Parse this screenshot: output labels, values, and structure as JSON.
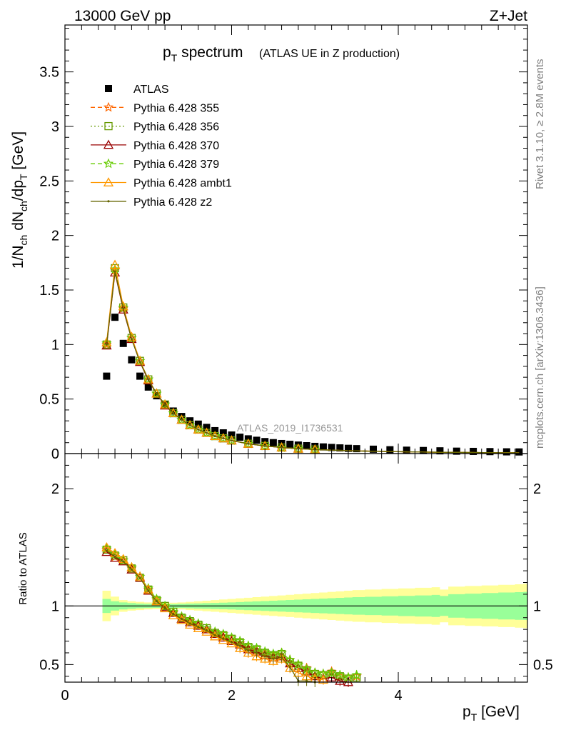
{
  "header": {
    "left": "13000 GeV pp",
    "right": "Z+Jet"
  },
  "title": {
    "main_pre": "p",
    "main_sub": "T",
    "main_post": " spectrum",
    "secondary": "(ATLAS UE in Z production)"
  },
  "ylabel_top": {
    "p1": "1/N",
    "s1": "ch",
    "p2": " dN",
    "s2": "ch",
    "p3": "/dp",
    "s3": "T",
    "p4": " [GeV]"
  },
  "ylabel_bottom": "Ratio to ATLAS",
  "xlabel": {
    "p": "p",
    "sub": "T",
    "rest": " [GeV]"
  },
  "side_text_top": "Rivet 3.1.10, ≥ 2.8M events",
  "side_text_bottom": "mcplots.cern.ch [arXiv:1306.3436]",
  "watermark": "ATLAS_2019_I1736531",
  "colors": {
    "data": "#000000",
    "band_inner": "#99ff99",
    "band_outer": "#ffff99"
  },
  "chart_data": [
    {
      "type": "scatter",
      "panel": "main",
      "xlim": [
        0,
        5.55
      ],
      "ylim": [
        0,
        3.93
      ],
      "xticks": [
        0,
        2,
        4
      ],
      "yticks": [
        0,
        0.5,
        1,
        1.5,
        2,
        2.5,
        3,
        3.5
      ],
      "ytick_labels": [
        "0",
        "0.5",
        "1",
        "1.5",
        "2",
        "2.5",
        "3",
        "3.5"
      ],
      "grid": false,
      "legend_position": "top-left",
      "series": [
        {
          "name": "ATLAS",
          "color": "#000000",
          "marker": "square",
          "line": "none",
          "x": [
            0.5,
            0.6,
            0.7,
            0.8,
            0.9,
            1.0,
            1.1,
            1.2,
            1.3,
            1.4,
            1.5,
            1.6,
            1.7,
            1.8,
            1.9,
            2.0,
            2.1,
            2.2,
            2.3,
            2.4,
            2.5,
            2.6,
            2.7,
            2.8,
            2.9,
            3.0,
            3.1,
            3.2,
            3.3,
            3.4,
            3.5,
            3.7,
            3.9,
            4.1,
            4.3,
            4.5,
            4.7,
            4.9,
            5.1,
            5.3,
            5.45
          ],
          "y": [
            0.71,
            1.25,
            1.01,
            0.86,
            0.71,
            0.61,
            0.53,
            0.45,
            0.39,
            0.34,
            0.3,
            0.27,
            0.24,
            0.21,
            0.19,
            0.17,
            0.15,
            0.135,
            0.122,
            0.11,
            0.1,
            0.092,
            0.085,
            0.078,
            0.072,
            0.066,
            0.061,
            0.056,
            0.052,
            0.048,
            0.045,
            0.04,
            0.035,
            0.031,
            0.028,
            0.025,
            0.022,
            0.02,
            0.018,
            0.016,
            0.015
          ]
        },
        {
          "name": "Pythia 6.428 355",
          "color": "#ff6600",
          "marker": "star",
          "line": "dashed",
          "x": [
            0.5,
            0.6,
            0.7,
            0.8,
            0.9,
            1.0,
            1.1,
            1.2,
            1.3,
            1.4,
            1.5,
            1.6,
            1.7,
            1.8,
            1.9,
            2.0,
            2.2,
            2.4,
            2.6,
            2.8,
            3.0,
            3.5,
            4.0,
            4.5,
            5.0,
            5.45
          ],
          "y": [
            1.0,
            1.68,
            1.33,
            1.06,
            0.85,
            0.68,
            0.55,
            0.45,
            0.37,
            0.31,
            0.26,
            0.22,
            0.19,
            0.16,
            0.14,
            0.12,
            0.09,
            0.07,
            0.055,
            0.045,
            0.037,
            0.024,
            0.017,
            0.012,
            0.009,
            0.007
          ]
        },
        {
          "name": "Pythia 6.428 356",
          "color": "#669900",
          "marker": "open-square",
          "line": "dotted",
          "x": [
            0.5,
            0.6,
            0.7,
            0.8,
            0.9,
            1.0,
            1.1,
            1.2,
            1.3,
            1.4,
            1.5,
            1.6,
            1.7,
            1.8,
            1.9,
            2.0,
            2.2,
            2.4,
            2.6,
            2.8,
            3.0,
            3.5,
            4.0,
            4.5,
            5.0,
            5.45
          ],
          "y": [
            1.0,
            1.7,
            1.34,
            1.06,
            0.85,
            0.68,
            0.55,
            0.45,
            0.37,
            0.31,
            0.26,
            0.22,
            0.19,
            0.16,
            0.14,
            0.12,
            0.09,
            0.07,
            0.055,
            0.045,
            0.037,
            0.024,
            0.017,
            0.012,
            0.009,
            0.007
          ]
        },
        {
          "name": "Pythia 6.428 370",
          "color": "#990000",
          "marker": "open-triangle",
          "line": "solid",
          "x": [
            0.5,
            0.6,
            0.7,
            0.8,
            0.9,
            1.0,
            1.1,
            1.2,
            1.3,
            1.4,
            1.5,
            1.6,
            1.7,
            1.8,
            1.9,
            2.0,
            2.2,
            2.4,
            2.6,
            2.8,
            3.0,
            3.5,
            4.0,
            4.5,
            5.0,
            5.45
          ],
          "y": [
            0.99,
            1.66,
            1.32,
            1.05,
            0.84,
            0.67,
            0.55,
            0.44,
            0.37,
            0.31,
            0.26,
            0.22,
            0.19,
            0.16,
            0.14,
            0.12,
            0.09,
            0.07,
            0.055,
            0.045,
            0.037,
            0.024,
            0.017,
            0.012,
            0.009,
            0.007
          ]
        },
        {
          "name": "Pythia 6.428 379",
          "color": "#66cc00",
          "marker": "star",
          "line": "dashed",
          "x": [
            0.5,
            0.6,
            0.7,
            0.8,
            0.9,
            1.0,
            1.1,
            1.2,
            1.3,
            1.4,
            1.5,
            1.6,
            1.7,
            1.8,
            1.9,
            2.0,
            2.2,
            2.4,
            2.6,
            2.8,
            3.0,
            3.5,
            4.0,
            4.5,
            5.0,
            5.45
          ],
          "y": [
            1.01,
            1.69,
            1.34,
            1.06,
            0.85,
            0.68,
            0.55,
            0.45,
            0.37,
            0.31,
            0.26,
            0.22,
            0.19,
            0.16,
            0.14,
            0.12,
            0.09,
            0.07,
            0.055,
            0.045,
            0.037,
            0.024,
            0.017,
            0.012,
            0.009,
            0.007
          ]
        },
        {
          "name": "Pythia 6.428 ambt1",
          "color": "#ff9900",
          "marker": "open-triangle",
          "line": "solid",
          "x": [
            0.5,
            0.6,
            0.7,
            0.8,
            0.9,
            1.0,
            1.1,
            1.2,
            1.3,
            1.4,
            1.5,
            1.6,
            1.7,
            1.8,
            1.9,
            2.0,
            2.2,
            2.4,
            2.6,
            2.8,
            3.0,
            3.5,
            4.0,
            4.5,
            5.0,
            5.45
          ],
          "y": [
            1.02,
            1.73,
            1.35,
            1.07,
            0.85,
            0.68,
            0.55,
            0.45,
            0.37,
            0.31,
            0.26,
            0.22,
            0.19,
            0.16,
            0.14,
            0.12,
            0.09,
            0.07,
            0.055,
            0.045,
            0.037,
            0.024,
            0.017,
            0.012,
            0.009,
            0.007
          ]
        },
        {
          "name": "Pythia 6.428 z2",
          "color": "#666600",
          "marker": "dot",
          "line": "solid",
          "x": [
            0.5,
            0.6,
            0.7,
            0.8,
            0.9,
            1.0,
            1.1,
            1.2,
            1.3,
            1.4,
            1.5,
            1.6,
            1.7,
            1.8,
            1.9,
            2.0,
            2.2,
            2.4,
            2.6,
            2.8,
            3.0,
            3.5,
            4.0,
            4.5,
            5.0,
            5.45
          ],
          "y": [
            1.0,
            1.67,
            1.33,
            1.05,
            0.84,
            0.68,
            0.55,
            0.45,
            0.37,
            0.31,
            0.26,
            0.22,
            0.19,
            0.16,
            0.14,
            0.12,
            0.09,
            0.07,
            0.055,
            0.045,
            0.037,
            0.024,
            0.017,
            0.012,
            0.009,
            0.007
          ]
        }
      ]
    },
    {
      "type": "line",
      "panel": "ratio",
      "xlim": [
        0,
        5.55
      ],
      "ylim": [
        0.35,
        2.3
      ],
      "xticks": [
        0,
        2,
        4
      ],
      "xtick_labels": [
        "0",
        "2",
        "4"
      ],
      "yticks": [
        0.5,
        1,
        2
      ],
      "ytick_labels": [
        "0.5",
        "1",
        "2"
      ],
      "reference_line": 1,
      "bands": {
        "x": [
          0.45,
          0.55,
          0.65,
          0.75,
          0.85,
          0.95,
          1.05,
          1.15,
          1.25,
          1.35,
          1.45,
          1.55,
          1.65,
          1.75,
          1.85,
          1.95,
          2.05,
          2.15,
          2.25,
          2.35,
          2.45,
          2.55,
          2.65,
          2.75,
          2.85,
          2.95,
          3.05,
          3.15,
          3.25,
          3.35,
          3.45,
          3.6,
          3.8,
          4.0,
          4.2,
          4.4,
          4.5,
          4.6,
          4.8,
          5.0,
          5.2,
          5.4,
          5.5
        ],
        "inner": [
          0.06,
          0.04,
          0.03,
          0.025,
          0.02,
          0.018,
          0.016,
          0.015,
          0.016,
          0.018,
          0.02,
          0.022,
          0.024,
          0.026,
          0.028,
          0.03,
          0.033,
          0.036,
          0.039,
          0.042,
          0.045,
          0.048,
          0.051,
          0.054,
          0.057,
          0.06,
          0.063,
          0.066,
          0.069,
          0.072,
          0.075,
          0.078,
          0.082,
          0.086,
          0.09,
          0.094,
          0.085,
          0.1,
          0.105,
          0.11,
          0.115,
          0.118,
          0.12
        ],
        "outer": [
          0.13,
          0.08,
          0.05,
          0.04,
          0.035,
          0.03,
          0.028,
          0.027,
          0.028,
          0.03,
          0.035,
          0.04,
          0.045,
          0.05,
          0.055,
          0.06,
          0.065,
          0.07,
          0.075,
          0.08,
          0.085,
          0.09,
          0.095,
          0.1,
          0.105,
          0.11,
          0.115,
          0.12,
          0.125,
          0.13,
          0.135,
          0.14,
          0.145,
          0.15,
          0.155,
          0.16,
          0.14,
          0.165,
          0.17,
          0.175,
          0.18,
          0.185,
          0.19
        ]
      },
      "series": [
        {
          "name": "Pythia 6.428 355",
          "color": "#ff6600",
          "marker": "star",
          "line": "dashed",
          "x": [
            0.5,
            0.6,
            0.7,
            0.8,
            0.9,
            1.0,
            1.1,
            1.2,
            1.3,
            1.4,
            1.5,
            1.6,
            1.7,
            1.8,
            1.9,
            2.0,
            2.1,
            2.2,
            2.3,
            2.4,
            2.5,
            2.6,
            2.7,
            2.8,
            2.9,
            3.0,
            3.1,
            3.2,
            3.3,
            3.4,
            3.5
          ],
          "y": [
            1.48,
            1.42,
            1.39,
            1.32,
            1.25,
            1.14,
            1.05,
            0.99,
            0.94,
            0.9,
            0.87,
            0.84,
            0.8,
            0.77,
            0.74,
            0.71,
            0.68,
            0.64,
            0.62,
            0.6,
            0.58,
            0.6,
            0.54,
            0.5,
            0.47,
            0.43,
            0.42,
            0.44,
            0.4,
            0.39,
            0.4
          ]
        },
        {
          "name": "Pythia 6.428 356",
          "color": "#669900",
          "marker": "open-square",
          "line": "dotted",
          "x": [
            0.5,
            0.6,
            0.7,
            0.8,
            0.9,
            1.0,
            1.1,
            1.2,
            1.3,
            1.4,
            1.5,
            1.6,
            1.7,
            1.8,
            1.9,
            2.0,
            2.1,
            2.2,
            2.3,
            2.4,
            2.5,
            2.6,
            2.7,
            2.8,
            2.9,
            3.0,
            3.1,
            3.2,
            3.3,
            3.4,
            3.5
          ],
          "y": [
            1.48,
            1.43,
            1.39,
            1.32,
            1.24,
            1.14,
            1.05,
            1.0,
            0.95,
            0.9,
            0.87,
            0.84,
            0.81,
            0.77,
            0.75,
            0.72,
            0.69,
            0.65,
            0.63,
            0.6,
            0.58,
            0.59,
            0.52,
            0.49,
            0.45,
            0.42,
            0.41,
            0.42,
            0.4,
            0.38,
            0.39
          ]
        },
        {
          "name": "Pythia 6.428 370",
          "color": "#990000",
          "marker": "open-triangle",
          "line": "solid",
          "x": [
            0.5,
            0.6,
            0.7,
            0.8,
            0.9,
            1.0,
            1.1,
            1.2,
            1.3,
            1.4,
            1.5,
            1.6,
            1.7,
            1.8,
            1.9,
            2.0,
            2.1,
            2.2,
            2.3,
            2.4,
            2.5,
            2.6,
            2.7,
            2.8,
            2.9,
            3.0,
            3.1,
            3.2,
            3.3,
            3.4
          ],
          "y": [
            1.46,
            1.41,
            1.38,
            1.31,
            1.24,
            1.13,
            1.04,
            0.99,
            0.94,
            0.89,
            0.86,
            0.83,
            0.8,
            0.76,
            0.73,
            0.7,
            0.67,
            0.63,
            0.61,
            0.58,
            0.56,
            0.57,
            0.51,
            0.47,
            0.44,
            0.4,
            0.38,
            0.39,
            0.36,
            0.35
          ]
        },
        {
          "name": "Pythia 6.428 379",
          "color": "#66cc00",
          "marker": "star",
          "line": "dashed",
          "x": [
            0.5,
            0.6,
            0.7,
            0.8,
            0.9,
            1.0,
            1.1,
            1.2,
            1.3,
            1.4,
            1.5,
            1.6,
            1.7,
            1.8,
            1.9,
            2.0,
            2.1,
            2.2,
            2.3,
            2.4,
            2.5,
            2.6,
            2.7,
            2.8,
            2.9,
            3.0,
            3.1,
            3.2,
            3.3,
            3.4,
            3.5
          ],
          "y": [
            1.49,
            1.44,
            1.39,
            1.33,
            1.25,
            1.15,
            1.06,
            1.0,
            0.95,
            0.91,
            0.88,
            0.85,
            0.81,
            0.78,
            0.76,
            0.73,
            0.7,
            0.66,
            0.64,
            0.61,
            0.59,
            0.6,
            0.54,
            0.5,
            0.46,
            0.43,
            0.42,
            0.43,
            0.41,
            0.39,
            0.41
          ]
        },
        {
          "name": "Pythia 6.428 ambt1",
          "color": "#ff9900",
          "marker": "open-triangle",
          "line": "solid",
          "x": [
            0.5,
            0.6,
            0.7,
            0.8,
            0.9,
            1.0,
            1.1,
            1.2,
            1.3,
            1.4,
            1.5,
            1.6,
            1.7,
            1.8,
            1.9,
            2.0,
            2.1,
            2.2,
            2.3,
            2.4,
            2.5,
            2.6,
            2.7,
            2.8,
            2.9,
            3.0,
            3.1
          ],
          "y": [
            1.5,
            1.45,
            1.4,
            1.33,
            1.25,
            1.14,
            1.04,
            0.98,
            0.92,
            0.88,
            0.84,
            0.81,
            0.78,
            0.74,
            0.71,
            0.68,
            0.64,
            0.6,
            0.57,
            0.55,
            0.53,
            0.55,
            0.47,
            0.43,
            0.4,
            0.38,
            0.37
          ]
        },
        {
          "name": "Pythia 6.428 z2",
          "color": "#666600",
          "marker": "dot",
          "line": "solid",
          "x": [
            0.5,
            0.6,
            0.7,
            0.8,
            0.9,
            1.0,
            1.1,
            1.2,
            1.3,
            1.4,
            1.5,
            1.6,
            1.7,
            1.8,
            1.9,
            2.0,
            2.1,
            2.2,
            2.3,
            2.4,
            2.5,
            2.6,
            2.7,
            2.8,
            2.9,
            3.0
          ],
          "y": [
            1.47,
            1.42,
            1.38,
            1.31,
            1.24,
            1.13,
            1.04,
            0.98,
            0.93,
            0.89,
            0.85,
            0.82,
            0.79,
            0.75,
            0.72,
            0.69,
            0.66,
            0.62,
            0.6,
            0.57,
            0.55,
            0.56,
            0.48,
            0.36,
            0.36,
            0.35
          ]
        }
      ]
    }
  ]
}
